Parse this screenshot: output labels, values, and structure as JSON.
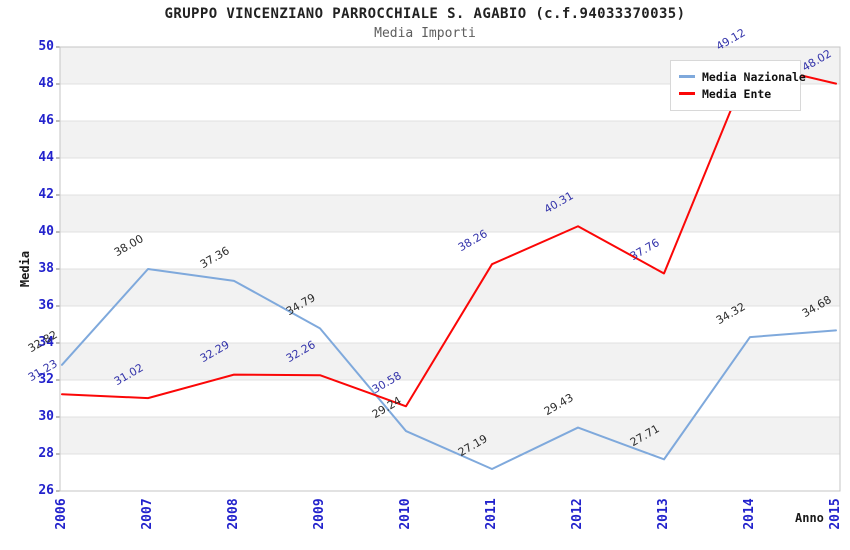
{
  "title": "GRUPPO VINCENZIANO PARROCCHIALE S. AGABIO (c.f.94033370035)",
  "subtitle": "Media Importi",
  "chart_data": {
    "type": "line",
    "categories": [
      "2006",
      "2007",
      "2008",
      "2009",
      "2010",
      "2011",
      "2012",
      "2013",
      "2014",
      "2015"
    ],
    "series": [
      {
        "name": "Media Nazionale",
        "color": "#7FA9DC",
        "label_color": "#2b2b2b",
        "values": [
          32.82,
          38.0,
          37.36,
          34.79,
          29.24,
          27.19,
          29.43,
          27.71,
          34.32,
          34.68
        ]
      },
      {
        "name": "Media Ente",
        "color": "#FB0707",
        "label_color": "#3333aa",
        "values": [
          31.23,
          31.02,
          32.29,
          32.26,
          30.58,
          38.26,
          40.31,
          37.76,
          49.12,
          48.02
        ]
      }
    ],
    "xlabel": "Anno",
    "ylabel": "Media",
    "ylim": [
      26,
      50
    ],
    "ytick_step": 2,
    "grid": true,
    "legend_position": "top-right",
    "colors": {
      "tick_label": "#2222cc",
      "band_odd": "#f2f2f2",
      "band_even": "#ffffff",
      "gridline": "#e0e0e0",
      "plot_border": "#c6c6c6",
      "tick_mark": "#7a7a7a"
    }
  }
}
